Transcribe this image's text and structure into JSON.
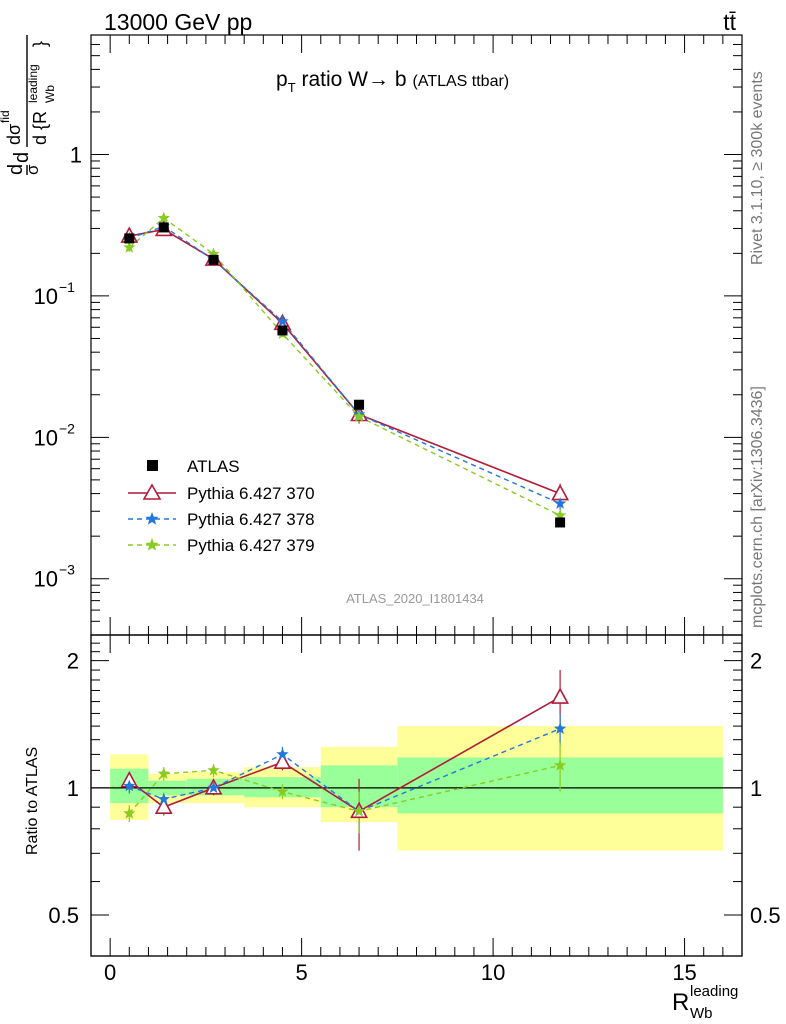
{
  "header": {
    "left": "13000 GeV pp",
    "right": "tt̄"
  },
  "side_texts": {
    "rivet": "Rivet 3.1.10, ≥ 300k events",
    "mcplots": "mcplots.cern.ch [arXiv:1306.3436]"
  },
  "analysis_id": "ATLAS_2020_I1801434",
  "chart_data": [
    {
      "type": "line",
      "panel": "main",
      "title": "p_T ratio W→b (ATLAS ttbar)",
      "title_parts": {
        "p": "p",
        "sub": "T",
        "rest": " ratio W",
        "arrow": "→",
        "b": " b",
        "small": "(ATLAS ttbar)"
      },
      "ylabel_parts": {
        "a": "d",
        "b": "σ",
        "c": "d",
        "d": "dσ",
        "e": "fid",
        "f": "d {R",
        "g": "leading",
        "h": "Wb",
        "i": "}"
      },
      "yscale": "log",
      "ylim": [
        0.0004,
        7
      ],
      "xlim": [
        -0.5,
        16.5
      ],
      "y_ticks": [
        {
          "value": 0.001,
          "base": "10",
          "exp": "−3"
        },
        {
          "value": 0.01,
          "base": "10",
          "exp": "−2"
        },
        {
          "value": 0.1,
          "base": "10",
          "exp": "−1"
        },
        {
          "value": 1,
          "base": "1",
          "exp": ""
        }
      ],
      "legend_position": "bottom-left",
      "x": [
        0.5,
        1.4,
        2.7,
        4.5,
        6.5,
        11.75
      ],
      "data": {
        "name": "ATLAS",
        "values": [
          0.255,
          0.305,
          0.18,
          0.057,
          0.017,
          0.0025
        ]
      },
      "series": [
        {
          "name": "Pythia 6.427 370",
          "color": "#b01c3a",
          "marker": "triangle",
          "dash": "solid",
          "values": [
            0.265,
            0.295,
            0.182,
            0.064,
            0.0145,
            0.004
          ],
          "errors": [
            0.02,
            0.01,
            0.008,
            0.004,
            0.002,
            0.0007
          ]
        },
        {
          "name": "Pythia 6.427 378",
          "color": "#2277dd",
          "marker": "star",
          "dash": "dashed",
          "values": [
            0.255,
            0.31,
            0.18,
            0.066,
            0.0145,
            0.0034
          ],
          "errors": [
            0.015,
            0.01,
            0.006,
            0.003,
            0.0015,
            0.0004
          ]
        },
        {
          "name": "Pythia 6.427 379",
          "color": "#88cc22",
          "marker": "star",
          "dash": "dashed",
          "values": [
            0.22,
            0.355,
            0.198,
            0.054,
            0.014,
            0.0028
          ],
          "errors": [
            0.015,
            0.012,
            0.007,
            0.003,
            0.0012,
            0.0003
          ]
        }
      ]
    },
    {
      "type": "line",
      "panel": "ratio",
      "ylabel": "Ratio to ATLAS",
      "xlabel": "R",
      "xlabel_sup": "leading",
      "xlabel_sub": "Wb",
      "ylim": [
        0.4,
        2.3
      ],
      "xlim": [
        -0.5,
        16.5
      ],
      "x_ticks": [
        0,
        5,
        10,
        15
      ],
      "y_ticks": [
        0.5,
        1,
        2
      ],
      "bands": [
        {
          "x0": 0.0,
          "x1": 1.0,
          "yellow": [
            0.84,
            1.2
          ],
          "green": [
            0.92,
            1.11
          ]
        },
        {
          "x0": 1.0,
          "x1": 2.0,
          "yellow": [
            0.92,
            1.08
          ],
          "green": [
            0.96,
            1.04
          ]
        },
        {
          "x0": 2.0,
          "x1": 3.5,
          "yellow": [
            0.92,
            1.09
          ],
          "green": [
            0.96,
            1.05
          ]
        },
        {
          "x0": 3.5,
          "x1": 5.5,
          "yellow": [
            0.9,
            1.12
          ],
          "green": [
            0.95,
            1.06
          ]
        },
        {
          "x0": 5.5,
          "x1": 7.5,
          "yellow": [
            0.83,
            1.25
          ],
          "green": [
            0.9,
            1.13
          ]
        },
        {
          "x0": 7.5,
          "x1": 16.0,
          "yellow": [
            0.71,
            1.4
          ],
          "green": [
            0.87,
            1.18
          ]
        }
      ],
      "series": [
        {
          "name": "Pythia 6.427 370",
          "values": [
            1.04,
            0.9,
            1.0,
            1.15,
            0.88,
            1.64
          ],
          "errors": [
            0.05,
            0.04,
            0.04,
            0.05,
            0.17,
            0.26
          ]
        },
        {
          "name": "Pythia 6.427 378",
          "values": [
            1.01,
            0.94,
            1.0,
            1.2,
            0.88,
            1.38
          ],
          "errors": [
            0.04,
            0.03,
            0.03,
            0.05,
            0.1,
            0.12
          ]
        },
        {
          "name": "Pythia 6.427 379",
          "values": [
            0.87,
            1.08,
            1.1,
            0.98,
            0.88,
            1.13
          ],
          "errors": [
            0.04,
            0.04,
            0.04,
            0.04,
            0.1,
            0.15
          ]
        }
      ]
    }
  ]
}
